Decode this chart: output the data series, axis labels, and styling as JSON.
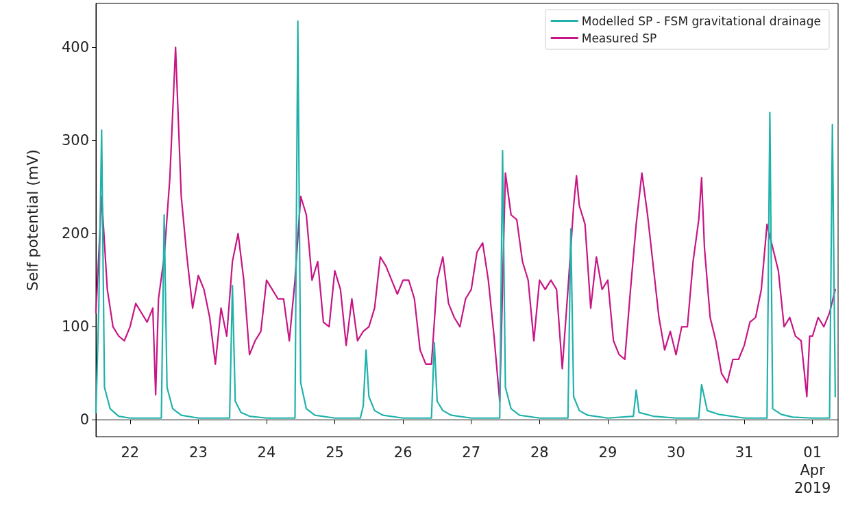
{
  "chart_data": {
    "type": "line",
    "ylabel": "Self potential (mV)",
    "xlim": [
      "2019-03-21T12:00",
      "2019-04-01T09:00"
    ],
    "ylim": [
      -18,
      447
    ],
    "yticks": [
      0,
      100,
      200,
      300,
      400
    ],
    "xticks": [
      {
        "value": "2019-03-22",
        "label": "22"
      },
      {
        "value": "2019-03-23",
        "label": "23"
      },
      {
        "value": "2019-03-24",
        "label": "24"
      },
      {
        "value": "2019-03-25",
        "label": "25"
      },
      {
        "value": "2019-03-26",
        "label": "26"
      },
      {
        "value": "2019-03-27",
        "label": "27"
      },
      {
        "value": "2019-03-28",
        "label": "28"
      },
      {
        "value": "2019-03-29",
        "label": "29"
      },
      {
        "value": "2019-03-30",
        "label": "30"
      },
      {
        "value": "2019-03-31",
        "label": "31"
      },
      {
        "value": "2019-04-01",
        "label": "01\nApr\n2019"
      }
    ],
    "legend": "top right",
    "marker": "none",
    "line_style": "solid",
    "series": [
      {
        "name": "Modelled SP - FSM gravitational drainage",
        "color": "#20b2aa",
        "x": [
          "2019-03-21T12:00",
          "2019-03-21T13:00",
          "2019-03-21T14:00",
          "2019-03-21T15:00",
          "2019-03-21T17:00",
          "2019-03-21T20:00",
          "2019-03-22T00:00",
          "2019-03-22T11:00",
          "2019-03-22T12:00",
          "2019-03-22T13:00",
          "2019-03-22T15:00",
          "2019-03-22T18:00",
          "2019-03-23T00:00",
          "2019-03-23T11:00",
          "2019-03-23T12:00",
          "2019-03-23T13:00",
          "2019-03-23T15:00",
          "2019-03-23T18:00",
          "2019-03-24T00:00",
          "2019-03-24T10:00",
          "2019-03-24T11:00",
          "2019-03-24T12:00",
          "2019-03-24T14:00",
          "2019-03-24T17:00",
          "2019-03-25T00:00",
          "2019-03-25T09:00",
          "2019-03-25T10:00",
          "2019-03-25T11:00",
          "2019-03-25T12:00",
          "2019-03-25T14:00",
          "2019-03-25T17:00",
          "2019-03-26T00:00",
          "2019-03-26T10:00",
          "2019-03-26T11:00",
          "2019-03-26T12:00",
          "2019-03-26T14:00",
          "2019-03-26T17:00",
          "2019-03-27T00:00",
          "2019-03-27T10:00",
          "2019-03-27T11:00",
          "2019-03-27T12:00",
          "2019-03-27T14:00",
          "2019-03-27T17:00",
          "2019-03-28T00:00",
          "2019-03-28T10:00",
          "2019-03-28T11:00",
          "2019-03-28T12:00",
          "2019-03-28T14:00",
          "2019-03-28T17:00",
          "2019-03-29T00:00",
          "2019-03-29T09:00",
          "2019-03-29T10:00",
          "2019-03-29T11:00",
          "2019-03-29T16:00",
          "2019-03-30T00:00",
          "2019-03-30T08:00",
          "2019-03-30T09:00",
          "2019-03-30T11:00",
          "2019-03-30T15:00",
          "2019-03-31T00:00",
          "2019-03-31T08:00",
          "2019-03-31T09:00",
          "2019-03-31T10:00",
          "2019-03-31T13:00",
          "2019-03-31T17:00",
          "2019-04-01T00:00",
          "2019-04-01T06:00",
          "2019-04-01T07:00",
          "2019-04-01T08:00"
        ],
        "values": [
          8,
          120,
          311,
          35,
          12,
          4,
          2,
          2,
          220,
          35,
          12,
          5,
          2,
          2,
          144,
          20,
          8,
          4,
          2,
          2,
          428,
          40,
          12,
          5,
          2,
          2,
          15,
          75,
          25,
          10,
          5,
          2,
          2,
          83,
          20,
          10,
          5,
          2,
          2,
          289,
          35,
          12,
          5,
          2,
          2,
          205,
          25,
          10,
          5,
          2,
          4,
          32,
          8,
          4,
          2,
          2,
          38,
          10,
          6,
          2,
          2,
          330,
          12,
          6,
          3,
          2,
          2,
          317,
          25
        ]
      },
      {
        "name": "Measured SP",
        "color": "#c71585",
        "x": [
          "2019-03-21T12:00",
          "2019-03-21T14:00",
          "2019-03-21T16:00",
          "2019-03-21T18:00",
          "2019-03-21T20:00",
          "2019-03-21T22:00",
          "2019-03-22T00:00",
          "2019-03-22T02:00",
          "2019-03-22T04:00",
          "2019-03-22T06:00",
          "2019-03-22T08:00",
          "2019-03-22T09:00",
          "2019-03-22T10:00",
          "2019-03-22T12:00",
          "2019-03-22T14:00",
          "2019-03-22T16:00",
          "2019-03-22T18:00",
          "2019-03-22T20:00",
          "2019-03-22T22:00",
          "2019-03-23T00:00",
          "2019-03-23T02:00",
          "2019-03-23T04:00",
          "2019-03-23T06:00",
          "2019-03-23T08:00",
          "2019-03-23T10:00",
          "2019-03-23T12:00",
          "2019-03-23T14:00",
          "2019-03-23T16:00",
          "2019-03-23T18:00",
          "2019-03-23T20:00",
          "2019-03-23T22:00",
          "2019-03-24T00:00",
          "2019-03-24T02:00",
          "2019-03-24T04:00",
          "2019-03-24T06:00",
          "2019-03-24T08:00",
          "2019-03-24T10:00",
          "2019-03-24T12:00",
          "2019-03-24T14:00",
          "2019-03-24T16:00",
          "2019-03-24T18:00",
          "2019-03-24T20:00",
          "2019-03-24T22:00",
          "2019-03-25T00:00",
          "2019-03-25T02:00",
          "2019-03-25T04:00",
          "2019-03-25T06:00",
          "2019-03-25T08:00",
          "2019-03-25T10:00",
          "2019-03-25T12:00",
          "2019-03-25T14:00",
          "2019-03-25T16:00",
          "2019-03-25T18:00",
          "2019-03-25T20:00",
          "2019-03-25T22:00",
          "2019-03-26T00:00",
          "2019-03-26T02:00",
          "2019-03-26T04:00",
          "2019-03-26T06:00",
          "2019-03-26T08:00",
          "2019-03-26T10:00",
          "2019-03-26T12:00",
          "2019-03-26T14:00",
          "2019-03-26T16:00",
          "2019-03-26T18:00",
          "2019-03-26T20:00",
          "2019-03-26T22:00",
          "2019-03-27T00:00",
          "2019-03-27T02:00",
          "2019-03-27T04:00",
          "2019-03-27T06:00",
          "2019-03-27T08:00",
          "2019-03-27T10:00",
          "2019-03-27T12:00",
          "2019-03-27T14:00",
          "2019-03-27T16:00",
          "2019-03-27T18:00",
          "2019-03-27T20:00",
          "2019-03-27T22:00",
          "2019-03-28T00:00",
          "2019-03-28T02:00",
          "2019-03-28T04:00",
          "2019-03-28T06:00",
          "2019-03-28T08:00",
          "2019-03-28T10:00",
          "2019-03-28T12:00",
          "2019-03-28T13:00",
          "2019-03-28T14:00",
          "2019-03-28T16:00",
          "2019-03-28T18:00",
          "2019-03-28T20:00",
          "2019-03-28T22:00",
          "2019-03-29T00:00",
          "2019-03-29T02:00",
          "2019-03-29T04:00",
          "2019-03-29T06:00",
          "2019-03-29T08:00",
          "2019-03-29T10:00",
          "2019-03-29T12:00",
          "2019-03-29T14:00",
          "2019-03-29T16:00",
          "2019-03-29T18:00",
          "2019-03-29T20:00",
          "2019-03-29T22:00",
          "2019-03-30T00:00",
          "2019-03-30T02:00",
          "2019-03-30T04:00",
          "2019-03-30T06:00",
          "2019-03-30T08:00",
          "2019-03-30T09:00",
          "2019-03-30T10:00",
          "2019-03-30T12:00",
          "2019-03-30T14:00",
          "2019-03-30T16:00",
          "2019-03-30T18:00",
          "2019-03-30T20:00",
          "2019-03-30T22:00",
          "2019-03-31T00:00",
          "2019-03-31T02:00",
          "2019-03-31T04:00",
          "2019-03-31T06:00",
          "2019-03-31T08:00",
          "2019-03-31T10:00",
          "2019-03-31T12:00",
          "2019-03-31T14:00",
          "2019-03-31T16:00",
          "2019-03-31T18:00",
          "2019-03-31T20:00",
          "2019-03-31T22:00",
          "2019-03-31T23:00",
          "2019-04-01T00:00",
          "2019-04-01T02:00",
          "2019-04-01T04:00",
          "2019-04-01T06:00",
          "2019-04-01T08:00"
        ],
        "values": [
          115,
          240,
          140,
          100,
          90,
          85,
          100,
          125,
          115,
          105,
          120,
          27,
          130,
          175,
          260,
          400,
          240,
          175,
          120,
          155,
          140,
          110,
          60,
          120,
          90,
          170,
          200,
          150,
          70,
          85,
          95,
          150,
          140,
          130,
          130,
          85,
          150,
          240,
          220,
          150,
          170,
          105,
          100,
          160,
          140,
          80,
          130,
          85,
          95,
          100,
          120,
          175,
          165,
          150,
          135,
          150,
          150,
          130,
          75,
          60,
          60,
          150,
          175,
          125,
          110,
          100,
          130,
          140,
          180,
          190,
          150,
          90,
          20,
          265,
          220,
          215,
          170,
          150,
          85,
          150,
          140,
          150,
          140,
          55,
          140,
          230,
          262,
          230,
          210,
          120,
          175,
          140,
          150,
          85,
          70,
          65,
          140,
          210,
          265,
          220,
          165,
          110,
          75,
          95,
          70,
          100,
          100,
          170,
          215,
          260,
          185,
          110,
          85,
          50,
          40,
          65,
          65,
          80,
          105,
          110,
          140,
          210,
          185,
          160,
          100,
          110,
          90,
          85,
          25,
          90,
          90,
          110,
          100,
          115,
          140
        ]
      }
    ]
  }
}
